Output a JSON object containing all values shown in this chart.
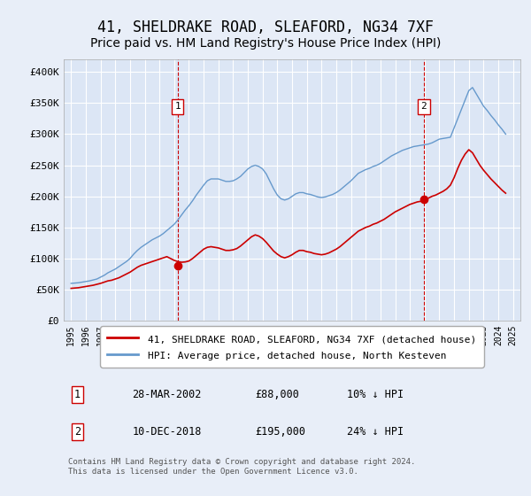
{
  "title": "41, SHELDRAKE ROAD, SLEAFORD, NG34 7XF",
  "subtitle": "Price paid vs. HM Land Registry's House Price Index (HPI)",
  "title_fontsize": 12,
  "subtitle_fontsize": 10,
  "background_color": "#e8eef8",
  "plot_bg_color": "#dce6f5",
  "grid_color": "#ffffff",
  "hpi_color": "#6699cc",
  "price_color": "#cc0000",
  "vline_color": "#cc0000",
  "ylim": [
    0,
    420000
  ],
  "yticks": [
    0,
    50000,
    100000,
    150000,
    200000,
    250000,
    300000,
    350000,
    400000
  ],
  "ytick_labels": [
    "£0",
    "£50K",
    "£100K",
    "£150K",
    "£200K",
    "£250K",
    "£300K",
    "£350K",
    "£400K"
  ],
  "xlim_start": 1994.5,
  "xlim_end": 2025.5,
  "xtick_years": [
    1995,
    1996,
    1997,
    1998,
    1999,
    2000,
    2001,
    2002,
    2003,
    2004,
    2005,
    2006,
    2007,
    2008,
    2009,
    2010,
    2011,
    2012,
    2013,
    2014,
    2015,
    2016,
    2017,
    2018,
    2019,
    2020,
    2021,
    2022,
    2023,
    2024,
    2025
  ],
  "purchase1_x": 2002.23,
  "purchase1_y": 88000,
  "purchase1_label": "1",
  "purchase2_x": 2018.94,
  "purchase2_y": 195000,
  "purchase2_label": "2",
  "legend_price_label": "41, SHELDRAKE ROAD, SLEAFORD, NG34 7XF (detached house)",
  "legend_hpi_label": "HPI: Average price, detached house, North Kesteven",
  "table_row1": [
    "1",
    "28-MAR-2002",
    "£88,000",
    "10% ↓ HPI"
  ],
  "table_row2": [
    "2",
    "10-DEC-2018",
    "£195,000",
    "24% ↓ HPI"
  ],
  "footer": "Contains HM Land Registry data © Crown copyright and database right 2024.\nThis data is licensed under the Open Government Licence v3.0.",
  "hpi_data_x": [
    1995.0,
    1995.25,
    1995.5,
    1995.75,
    1996.0,
    1996.25,
    1996.5,
    1996.75,
    1997.0,
    1997.25,
    1997.5,
    1997.75,
    1998.0,
    1998.25,
    1998.5,
    1998.75,
    1999.0,
    1999.25,
    1999.5,
    1999.75,
    2000.0,
    2000.25,
    2000.5,
    2000.75,
    2001.0,
    2001.25,
    2001.5,
    2001.75,
    2002.0,
    2002.25,
    2002.5,
    2002.75,
    2003.0,
    2003.25,
    2003.5,
    2003.75,
    2004.0,
    2004.25,
    2004.5,
    2004.75,
    2005.0,
    2005.25,
    2005.5,
    2005.75,
    2006.0,
    2006.25,
    2006.5,
    2006.75,
    2007.0,
    2007.25,
    2007.5,
    2007.75,
    2008.0,
    2008.25,
    2008.5,
    2008.75,
    2009.0,
    2009.25,
    2009.5,
    2009.75,
    2010.0,
    2010.25,
    2010.5,
    2010.75,
    2011.0,
    2011.25,
    2011.5,
    2011.75,
    2012.0,
    2012.25,
    2012.5,
    2012.75,
    2013.0,
    2013.25,
    2013.5,
    2013.75,
    2014.0,
    2014.25,
    2014.5,
    2014.75,
    2015.0,
    2015.25,
    2015.5,
    2015.75,
    2016.0,
    2016.25,
    2016.5,
    2016.75,
    2017.0,
    2017.25,
    2017.5,
    2017.75,
    2018.0,
    2018.25,
    2018.5,
    2018.75,
    2019.0,
    2019.25,
    2019.5,
    2019.75,
    2020.0,
    2020.25,
    2020.5,
    2020.75,
    2021.0,
    2021.25,
    2021.5,
    2021.75,
    2022.0,
    2022.25,
    2022.5,
    2022.75,
    2023.0,
    2023.25,
    2023.5,
    2023.75,
    2024.0,
    2024.25,
    2024.5
  ],
  "hpi_data_y": [
    60000,
    60500,
    61000,
    62000,
    63000,
    64000,
    65500,
    67000,
    70000,
    73000,
    77000,
    80000,
    83000,
    87000,
    91000,
    95000,
    100000,
    107000,
    113000,
    118000,
    122000,
    126000,
    130000,
    133000,
    136000,
    140000,
    145000,
    150000,
    155000,
    162000,
    170000,
    178000,
    185000,
    193000,
    202000,
    210000,
    218000,
    225000,
    228000,
    228000,
    228000,
    226000,
    224000,
    224000,
    225000,
    228000,
    232000,
    238000,
    244000,
    248000,
    250000,
    248000,
    244000,
    236000,
    224000,
    212000,
    202000,
    196000,
    194000,
    196000,
    200000,
    204000,
    206000,
    206000,
    204000,
    203000,
    201000,
    199000,
    198000,
    199000,
    201000,
    203000,
    206000,
    210000,
    215000,
    220000,
    225000,
    231000,
    237000,
    240000,
    243000,
    245000,
    248000,
    250000,
    253000,
    257000,
    261000,
    265000,
    268000,
    271000,
    274000,
    276000,
    278000,
    280000,
    281000,
    282000,
    283000,
    284000,
    286000,
    289000,
    292000,
    293000,
    294000,
    295000,
    310000,
    325000,
    340000,
    355000,
    370000,
    375000,
    365000,
    355000,
    345000,
    338000,
    330000,
    323000,
    315000,
    308000,
    300000
  ],
  "price_data_x": [
    1995.0,
    1995.25,
    1995.5,
    1995.75,
    1996.0,
    1996.25,
    1996.5,
    1996.75,
    1997.0,
    1997.25,
    1997.5,
    1997.75,
    1998.0,
    1998.25,
    1998.5,
    1998.75,
    1999.0,
    1999.25,
    1999.5,
    1999.75,
    2000.0,
    2000.25,
    2000.5,
    2000.75,
    2001.0,
    2001.25,
    2001.5,
    2001.75,
    2002.0,
    2002.25,
    2002.5,
    2002.75,
    2003.0,
    2003.25,
    2003.5,
    2003.75,
    2004.0,
    2004.25,
    2004.5,
    2004.75,
    2005.0,
    2005.25,
    2005.5,
    2005.75,
    2006.0,
    2006.25,
    2006.5,
    2006.75,
    2007.0,
    2007.25,
    2007.5,
    2007.75,
    2008.0,
    2008.25,
    2008.5,
    2008.75,
    2009.0,
    2009.25,
    2009.5,
    2009.75,
    2010.0,
    2010.25,
    2010.5,
    2010.75,
    2011.0,
    2011.25,
    2011.5,
    2011.75,
    2012.0,
    2012.25,
    2012.5,
    2012.75,
    2013.0,
    2013.25,
    2013.5,
    2013.75,
    2014.0,
    2014.25,
    2014.5,
    2014.75,
    2015.0,
    2015.25,
    2015.5,
    2015.75,
    2016.0,
    2016.25,
    2016.5,
    2016.75,
    2017.0,
    2017.25,
    2017.5,
    2017.75,
    2018.0,
    2018.25,
    2018.5,
    2018.75,
    2019.0,
    2019.25,
    2019.5,
    2019.75,
    2020.0,
    2020.25,
    2020.5,
    2020.75,
    2021.0,
    2021.25,
    2021.5,
    2021.75,
    2022.0,
    2022.25,
    2022.5,
    2022.75,
    2023.0,
    2023.25,
    2023.5,
    2023.75,
    2024.0,
    2024.25,
    2024.5
  ],
  "price_data_y": [
    52000,
    52500,
    53000,
    54000,
    55000,
    56000,
    57000,
    58500,
    60000,
    62000,
    64000,
    65000,
    67000,
    69000,
    72000,
    75000,
    78000,
    82000,
    86000,
    89000,
    91000,
    93000,
    95000,
    97000,
    99000,
    101000,
    103000,
    100000,
    97000,
    95000,
    94000,
    94500,
    96000,
    100000,
    105000,
    110000,
    115000,
    118000,
    119000,
    118000,
    117000,
    115000,
    113000,
    113000,
    114000,
    116000,
    120000,
    125000,
    130000,
    135000,
    138000,
    136000,
    132000,
    126000,
    119000,
    112000,
    107000,
    103000,
    101000,
    103000,
    106000,
    110000,
    113000,
    113000,
    111000,
    110000,
    108000,
    107000,
    106000,
    107000,
    109000,
    112000,
    115000,
    119000,
    124000,
    129000,
    134000,
    139000,
    144000,
    147000,
    150000,
    152000,
    155000,
    157000,
    160000,
    163000,
    167000,
    171000,
    175000,
    178000,
    181000,
    184000,
    187000,
    189000,
    191000,
    192000,
    194000,
    197000,
    200000,
    202000,
    205000,
    208000,
    212000,
    218000,
    230000,
    245000,
    258000,
    268000,
    275000,
    270000,
    260000,
    250000,
    242000,
    235000,
    228000,
    222000,
    216000,
    210000,
    205000
  ]
}
